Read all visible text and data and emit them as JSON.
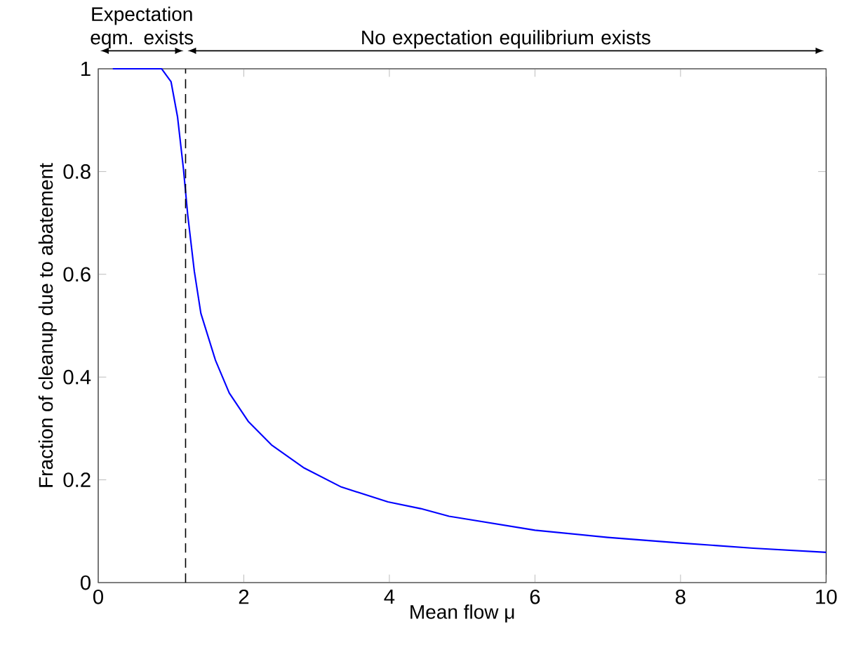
{
  "chart_data": {
    "type": "line",
    "xlabel": "Mean flow      μ",
    "ylabel": "Fraction of cleanup due to abatement",
    "annotations": [
      "Expectation eqm. exists",
      "No expectation equilibrium exists"
    ],
    "xlim": [
      0,
      10
    ],
    "ylim": [
      0,
      1
    ],
    "xticks": [
      0,
      2,
      4,
      6,
      8,
      10
    ],
    "yticks": [
      0,
      0.2,
      0.4,
      0.6,
      0.8,
      1
    ],
    "grid": false,
    "marker": "none",
    "line_style": "solid",
    "ref_lines": [
      {
        "axis": "x",
        "value": 1.2,
        "color": "#000000",
        "line_style": "dashed"
      }
    ],
    "series": [
      {
        "color": "#0000ff",
        "x": [
          0.2,
          0.5,
          0.87,
          1.0,
          1.09,
          1.17,
          1.23,
          1.32,
          1.41,
          1.61,
          1.8,
          2.06,
          2.38,
          2.83,
          3.34,
          3.98,
          4.43,
          4.82,
          5.0,
          6.0,
          7.0,
          8.0,
          9.0,
          10.0
        ],
        "values": [
          1,
          1,
          1,
          0.975,
          0.906,
          0.806,
          0.715,
          0.606,
          0.524,
          0.433,
          0.369,
          0.314,
          0.268,
          0.223,
          0.186,
          0.157,
          0.144,
          0.129,
          0.125,
          0.102,
          0.088,
          0.077,
          0.067,
          0.059
        ]
      }
    ]
  }
}
